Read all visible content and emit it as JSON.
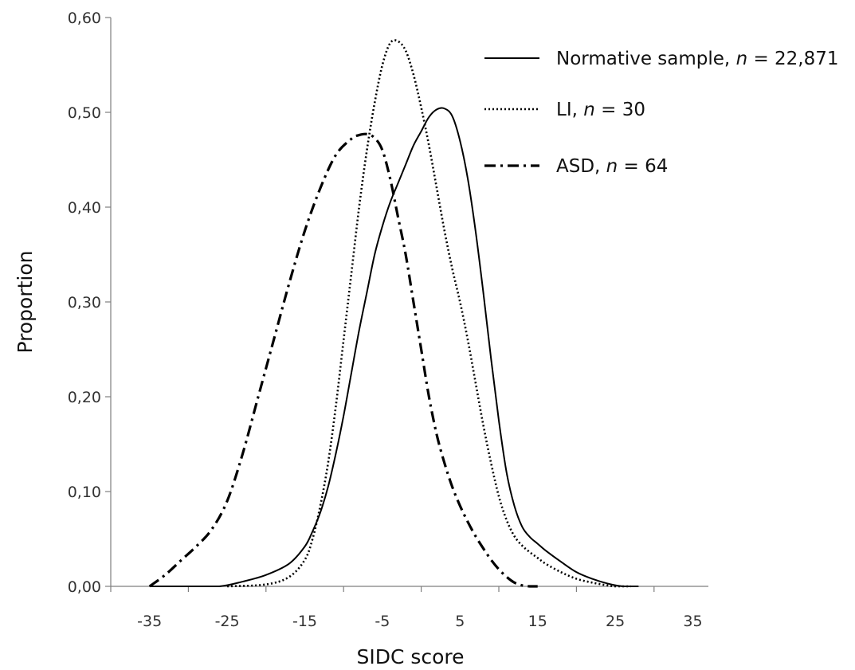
{
  "chart_data": {
    "type": "line",
    "xlabel": "SIDC score",
    "ylabel": "Proportion",
    "xlim": [
      -40,
      37
    ],
    "ylim": [
      0,
      0.6
    ],
    "x_ticks": [
      -35,
      -25,
      -15,
      -5,
      5,
      15,
      25,
      35
    ],
    "x_tick_labels": [
      "-35",
      "-25",
      "-15",
      "-5",
      "5",
      "15",
      "25",
      "35"
    ],
    "y_ticks": [
      0,
      0.1,
      0.2,
      0.3,
      0.4,
      0.5,
      0.6
    ],
    "y_tick_labels": [
      "0,00",
      "0,10",
      "0,20",
      "0,30",
      "0,40",
      "0,50",
      "0,60"
    ],
    "grid": false,
    "legend_position": "top-right",
    "series": [
      {
        "name": "Normative sample",
        "n_label": "n",
        "n_value": "= 22,871",
        "style": "solid",
        "x": [
          -35,
          -30,
          -26,
          -23,
          -20,
          -17,
          -15,
          -14,
          -13,
          -12,
          -11,
          -10,
          -9,
          -8,
          -7,
          -6,
          -5,
          -4,
          -3,
          -2,
          -1,
          0,
          1,
          2,
          3,
          4,
          5,
          6,
          7,
          8,
          9,
          10,
          11,
          12,
          13,
          14,
          15,
          16,
          18,
          20,
          22,
          24,
          26,
          28
        ],
        "y": [
          0,
          0,
          0,
          0.005,
          0.012,
          0.024,
          0.042,
          0.058,
          0.078,
          0.105,
          0.14,
          0.18,
          0.225,
          0.27,
          0.31,
          0.35,
          0.38,
          0.405,
          0.425,
          0.445,
          0.465,
          0.48,
          0.495,
          0.503,
          0.504,
          0.496,
          0.47,
          0.43,
          0.375,
          0.31,
          0.24,
          0.175,
          0.12,
          0.085,
          0.063,
          0.052,
          0.045,
          0.038,
          0.026,
          0.015,
          0.008,
          0.003,
          0,
          0
        ]
      },
      {
        "name": "LI",
        "n_label": "n",
        "n_value": "= 30",
        "style": "dotted",
        "x": [
          -25,
          -20,
          -17,
          -15,
          -14,
          -13,
          -12,
          -11,
          -10,
          -9,
          -8,
          -7,
          -6,
          -5,
          -4,
          -3,
          -2,
          -1,
          0,
          1,
          2,
          3,
          4,
          5,
          6,
          7,
          8,
          9,
          10,
          11,
          12,
          13,
          14,
          15,
          16,
          18,
          20,
          22,
          24,
          25,
          27
        ],
        "y": [
          0,
          0.002,
          0.01,
          0.028,
          0.05,
          0.085,
          0.13,
          0.19,
          0.26,
          0.33,
          0.4,
          0.46,
          0.51,
          0.55,
          0.573,
          0.575,
          0.565,
          0.54,
          0.505,
          0.465,
          0.42,
          0.375,
          0.335,
          0.3,
          0.26,
          0.215,
          0.17,
          0.13,
          0.095,
          0.07,
          0.053,
          0.043,
          0.036,
          0.03,
          0.024,
          0.015,
          0.008,
          0.004,
          0.001,
          0,
          0
        ]
      },
      {
        "name": "ASD",
        "n_label": "n",
        "n_value": "= 64",
        "style": "dash-dot",
        "x": [
          -35,
          -33,
          -31,
          -29,
          -27,
          -25,
          -23,
          -21,
          -19,
          -17,
          -15,
          -13,
          -11,
          -9,
          -8,
          -7,
          -6,
          -5,
          -4,
          -3,
          -2,
          -1,
          0,
          1,
          2,
          3,
          4,
          5,
          6,
          7,
          8,
          9,
          10,
          11,
          12,
          13,
          14,
          15
        ],
        "y": [
          0,
          0.012,
          0.027,
          0.042,
          0.06,
          0.09,
          0.14,
          0.2,
          0.26,
          0.32,
          0.375,
          0.42,
          0.455,
          0.472,
          0.476,
          0.477,
          0.473,
          0.46,
          0.43,
          0.39,
          0.35,
          0.3,
          0.25,
          0.2,
          0.16,
          0.13,
          0.105,
          0.085,
          0.068,
          0.053,
          0.04,
          0.028,
          0.018,
          0.01,
          0.004,
          0.001,
          0,
          0
        ]
      }
    ]
  }
}
